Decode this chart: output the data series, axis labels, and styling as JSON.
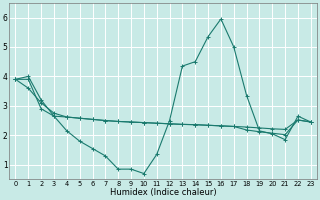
{
  "xlabel": "Humidex (Indice chaleur)",
  "bg_color": "#c8eae6",
  "grid_color": "#ffffff",
  "line_color": "#1a7a6e",
  "xlim_min": -0.5,
  "xlim_max": 23.5,
  "ylim_min": 0.5,
  "ylim_max": 6.5,
  "yticks": [
    1,
    2,
    3,
    4,
    5,
    6
  ],
  "xticks": [
    0,
    1,
    2,
    3,
    4,
    5,
    6,
    7,
    8,
    9,
    10,
    11,
    12,
    13,
    14,
    15,
    16,
    17,
    18,
    19,
    20,
    21,
    22,
    23
  ],
  "line1": [
    3.9,
    4.0,
    3.2,
    2.65,
    2.15,
    1.8,
    1.55,
    1.3,
    0.85,
    0.85,
    0.7,
    1.35,
    2.5,
    4.35,
    4.5,
    5.35,
    5.95,
    5.0,
    3.35,
    2.15,
    2.05,
    1.85,
    2.65,
    2.45
  ],
  "line2": [
    3.9,
    3.6,
    3.1,
    2.75,
    2.62,
    2.58,
    2.54,
    2.5,
    2.47,
    2.45,
    2.43,
    2.41,
    2.39,
    2.37,
    2.36,
    2.34,
    2.32,
    2.3,
    2.18,
    2.12,
    2.07,
    2.02,
    2.52,
    2.45
  ],
  "line3": [
    3.9,
    3.9,
    2.9,
    2.65,
    2.62,
    2.58,
    2.54,
    2.5,
    2.47,
    2.45,
    2.43,
    2.41,
    2.39,
    2.37,
    2.36,
    2.34,
    2.32,
    2.3,
    2.28,
    2.25,
    2.22,
    2.2,
    2.52,
    2.45
  ],
  "xlabel_fontsize": 6.0,
  "xtick_fontsize": 4.8,
  "ytick_fontsize": 5.5,
  "lw": 0.8,
  "ms": 2.5,
  "mew": 0.7
}
